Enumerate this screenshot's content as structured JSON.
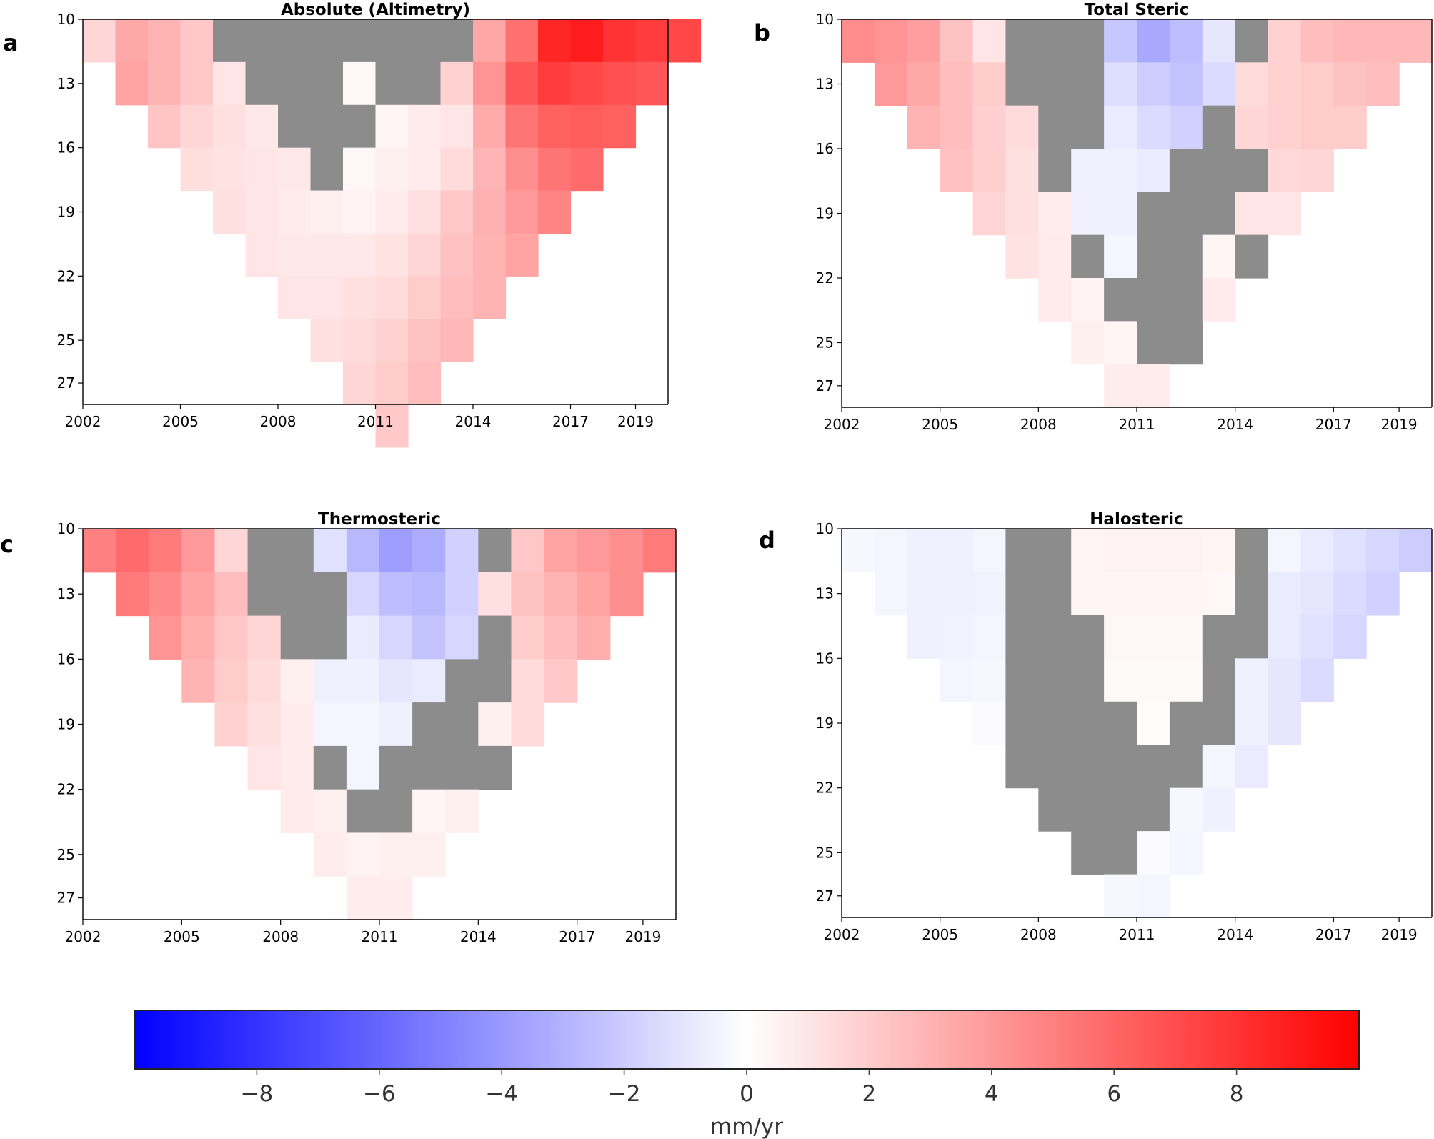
{
  "chart_data": [
    {
      "type": "heatmap",
      "panel": "a",
      "title": "Absolute (Altimetry)",
      "xlabel": "",
      "ylabel": "",
      "x_ticks": [
        "2002",
        "2005",
        "2008",
        "2011",
        "2014",
        "2017",
        "2019"
      ],
      "y_ticks": [
        "10",
        "13",
        "16",
        "19",
        "22",
        "25",
        "27"
      ],
      "x_range": [
        2002,
        2020
      ],
      "y_range": [
        10,
        28
      ],
      "masked_color": "#8c8c8c",
      "cells": [
        [
          1.6,
          3.4,
          3.0,
          2.2,
          "x",
          "x",
          "x",
          "x",
          "x",
          "x",
          "x",
          "x",
          3.5,
          5.6,
          8.5,
          8.9,
          8.0,
          7.6,
          7.2
        ],
        [
          null,
          3.6,
          3.0,
          2.2,
          1.0,
          "x",
          "x",
          "x",
          0.3,
          "x",
          "x",
          1.8,
          4.2,
          6.6,
          7.6,
          7.2,
          6.9,
          6.6
        ],
        [
          null,
          null,
          2.3,
          1.6,
          1.2,
          0.9,
          "x",
          "x",
          "x",
          0.4,
          0.8,
          1.0,
          3.3,
          5.4,
          6.2,
          6.4,
          6.2
        ],
        [
          null,
          null,
          null,
          1.3,
          1.1,
          1.0,
          0.9,
          "x",
          0.3,
          0.6,
          0.8,
          1.4,
          2.9,
          4.4,
          5.4,
          5.8
        ],
        [
          null,
          null,
          null,
          null,
          1.2,
          1.0,
          0.8,
          0.6,
          0.5,
          0.8,
          1.2,
          2.2,
          3.1,
          4.0,
          4.8
        ],
        [
          null,
          null,
          null,
          null,
          null,
          1.0,
          0.9,
          0.9,
          0.9,
          1.1,
          1.6,
          2.4,
          3.0,
          3.6
        ],
        [
          null,
          null,
          null,
          null,
          null,
          null,
          1.0,
          1.0,
          1.2,
          1.4,
          2.0,
          2.6,
          3.0
        ],
        [
          null,
          null,
          null,
          null,
          null,
          null,
          null,
          1.2,
          1.4,
          1.8,
          2.4,
          2.8
        ],
        [
          null,
          null,
          null,
          null,
          null,
          null,
          null,
          null,
          1.6,
          2.0,
          2.6
        ],
        [
          null,
          null,
          null,
          null,
          null,
          null,
          null,
          null,
          null,
          2.1
        ]
      ]
    },
    {
      "type": "heatmap",
      "panel": "b",
      "title": "Total Steric",
      "xlabel": "",
      "ylabel": "",
      "x_ticks": [
        "2002",
        "2005",
        "2008",
        "2011",
        "2014",
        "2017",
        "2019"
      ],
      "y_ticks": [
        "10",
        "13",
        "16",
        "19",
        "22",
        "25",
        "27"
      ],
      "x_range": [
        2002,
        2020
      ],
      "y_range": [
        10,
        28
      ],
      "masked_color": "#8c8c8c",
      "cells": [
        [
          4.5,
          4.2,
          3.8,
          2.4,
          1.0,
          "x",
          "x",
          "x",
          -2.2,
          -3.4,
          -2.6,
          -1.0,
          "x",
          1.8,
          2.6,
          2.8,
          2.8,
          2.8
        ],
        [
          null,
          4.0,
          3.4,
          2.6,
          2.0,
          "x",
          "x",
          "x",
          -1.3,
          -2.0,
          -2.4,
          -1.4,
          1.4,
          1.8,
          2.0,
          2.4,
          2.6
        ],
        [
          null,
          null,
          3.0,
          2.6,
          1.9,
          1.4,
          "x",
          "x",
          -0.8,
          -1.4,
          -1.8,
          "x",
          1.6,
          1.8,
          2.0,
          2.0
        ],
        [
          null,
          null,
          null,
          2.4,
          1.9,
          1.2,
          "x",
          -0.6,
          -0.6,
          -0.8,
          "x",
          "x",
          "x",
          1.5,
          1.6
        ],
        [
          null,
          null,
          null,
          null,
          1.7,
          1.2,
          0.7,
          -0.6,
          -0.6,
          "x",
          "x",
          "x",
          1.0,
          1.0
        ],
        [
          null,
          null,
          null,
          null,
          null,
          1.1,
          0.8,
          "x",
          -0.4,
          "x",
          "x",
          0.4,
          "x"
        ],
        [
          null,
          null,
          null,
          null,
          null,
          null,
          0.8,
          0.5,
          "x",
          "x",
          "x",
          0.8
        ],
        [
          null,
          null,
          null,
          null,
          null,
          null,
          null,
          0.6,
          0.4,
          "x",
          "x"
        ],
        [
          null,
          null,
          null,
          null,
          null,
          null,
          null,
          null,
          0.7,
          0.7
        ],
        [
          null,
          null,
          null,
          null,
          null,
          null,
          null,
          null,
          null
        ]
      ]
    },
    {
      "type": "heatmap",
      "panel": "c",
      "title": "Thermosteric",
      "xlabel": "",
      "ylabel": "",
      "x_ticks": [
        "2002",
        "2005",
        "2008",
        "2011",
        "2014",
        "2017",
        "2019"
      ],
      "y_ticks": [
        "10",
        "13",
        "16",
        "19",
        "22",
        "25",
        "27"
      ],
      "x_range": [
        2002,
        2020
      ],
      "y_range": [
        10,
        28
      ],
      "masked_color": "#8c8c8c",
      "cells": [
        [
          5.0,
          5.8,
          5.2,
          4.0,
          1.6,
          "x",
          "x",
          -1.2,
          -2.8,
          -3.8,
          -3.2,
          -1.8,
          "x",
          2.2,
          3.6,
          4.0,
          4.4,
          5.2
        ],
        [
          null,
          5.2,
          4.6,
          3.6,
          2.6,
          "x",
          "x",
          "x",
          -1.6,
          -2.6,
          -2.8,
          -1.8,
          1.2,
          2.4,
          3.0,
          3.6,
          4.4
        ],
        [
          null,
          null,
          4.2,
          3.2,
          2.2,
          1.6,
          "x",
          "x",
          -0.8,
          -1.6,
          -2.4,
          -1.6,
          "x",
          2.0,
          2.6,
          3.2
        ],
        [
          null,
          null,
          null,
          3.0,
          2.0,
          1.4,
          0.6,
          -0.6,
          -0.6,
          -1.0,
          -0.8,
          "x",
          "x",
          1.4,
          2.2
        ],
        [
          null,
          null,
          null,
          null,
          1.8,
          1.2,
          0.8,
          -0.4,
          -0.4,
          -0.6,
          "x",
          "x",
          0.6,
          1.4
        ],
        [
          null,
          null,
          null,
          null,
          null,
          1.0,
          0.8,
          "x",
          -0.4,
          "x",
          "x",
          "x",
          "x"
        ],
        [
          null,
          null,
          null,
          null,
          null,
          null,
          0.8,
          0.6,
          "x",
          "x",
          0.4,
          0.6
        ],
        [
          null,
          null,
          null,
          null,
          null,
          null,
          null,
          0.7,
          0.5,
          0.6,
          0.6
        ],
        [
          null,
          null,
          null,
          null,
          null,
          null,
          null,
          null,
          0.7,
          0.7
        ],
        [
          null,
          null,
          null,
          null,
          null,
          null,
          null,
          null,
          null
        ]
      ]
    },
    {
      "type": "heatmap",
      "panel": "d",
      "title": "Halosteric",
      "xlabel": "",
      "ylabel": "",
      "x_ticks": [
        "2002",
        "2005",
        "2008",
        "2011",
        "2014",
        "2017",
        "2019"
      ],
      "y_ticks": [
        "10",
        "13",
        "16",
        "19",
        "22",
        "25",
        "27"
      ],
      "x_range": [
        2002,
        2020
      ],
      "y_range": [
        10,
        28
      ],
      "masked_color": "#8c8c8c",
      "cells": [
        [
          -0.3,
          -0.4,
          -0.6,
          -0.6,
          -0.4,
          "x",
          "x",
          0.4,
          0.5,
          0.5,
          0.5,
          0.4,
          "x",
          -0.4,
          -0.8,
          -1.2,
          -1.6,
          -2.0
        ],
        [
          null,
          -0.4,
          -0.6,
          -0.6,
          -0.5,
          "x",
          "x",
          0.4,
          0.4,
          0.4,
          0.4,
          0.3,
          "x",
          -0.8,
          -1.0,
          -1.4,
          -1.8
        ],
        [
          null,
          null,
          -0.6,
          -0.5,
          -0.4,
          "x",
          "x",
          "x",
          0.3,
          0.3,
          0.3,
          "x",
          "x",
          -0.8,
          -1.2,
          -1.6
        ],
        [
          null,
          null,
          null,
          -0.4,
          -0.3,
          "x",
          "x",
          "x",
          0.2,
          0.2,
          0.2,
          "x",
          -0.6,
          -1.0,
          -1.4
        ],
        [
          null,
          null,
          null,
          null,
          -0.2,
          "x",
          "x",
          "x",
          "x",
          0.1,
          "x",
          "x",
          -0.6,
          -1.0
        ],
        [
          null,
          null,
          null,
          null,
          null,
          "x",
          "x",
          "x",
          "x",
          "x",
          "x",
          -0.4,
          -0.8
        ],
        [
          null,
          null,
          null,
          null,
          null,
          null,
          "x",
          "x",
          "x",
          "x",
          -0.3,
          -0.6
        ],
        [
          null,
          null,
          null,
          null,
          null,
          null,
          null,
          "x",
          "x",
          -0.2,
          -0.4
        ],
        [
          null,
          null,
          null,
          null,
          null,
          null,
          null,
          null,
          -0.3,
          -0.4
        ],
        [
          null,
          null,
          null,
          null,
          null,
          null,
          null,
          null,
          null
        ]
      ]
    }
  ],
  "colorbar": {
    "label": "mm/yr",
    "ticks": [
      "−8",
      "−6",
      "−4",
      "−2",
      "0",
      "2",
      "4",
      "6",
      "8"
    ],
    "range": [
      -10,
      10
    ],
    "low_color": "#0000ff",
    "mid_color": "#ffffff",
    "high_color": "#ff0000"
  },
  "panel_letters": {
    "a": "a",
    "b": "b",
    "c": "c",
    "d": "d"
  }
}
